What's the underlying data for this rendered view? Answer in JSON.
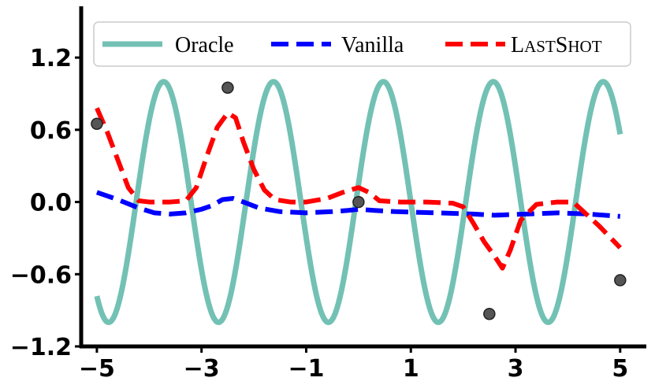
{
  "chart_data": {
    "type": "line",
    "title": "",
    "xlabel": "",
    "ylabel": "",
    "xlim": [
      -5.3,
      5.5
    ],
    "ylim": [
      -1.2,
      1.6
    ],
    "grid": false,
    "legend_position": "top",
    "x_ticks": [
      -5,
      -3,
      -1,
      1,
      3,
      5
    ],
    "x_tick_labels": [
      "−5",
      "−3",
      "−1",
      "1",
      "3",
      "5"
    ],
    "y_ticks": [
      -1.2,
      -0.6,
      0.0,
      0.6,
      1.2
    ],
    "y_tick_labels": [
      "−1.2",
      "−0.6",
      "0.0",
      "0.6",
      "1.2"
    ],
    "series": [
      {
        "name": "Oracle",
        "style": "solid",
        "color": "#72c1b4",
        "function": "sine",
        "amplitude": 1.0,
        "period": 2.1,
        "phase": 0.15,
        "x_range": [
          -5,
          5
        ]
      },
      {
        "name": "Vanilla",
        "style": "dashed",
        "color": "#0000ff",
        "x": [
          -5.0,
          -4.6,
          -4.2,
          -3.9,
          -3.6,
          -3.3,
          -3.0,
          -2.8,
          -2.6,
          -2.4,
          -2.2,
          -1.9,
          -1.5,
          -1.0,
          -0.5,
          -0.2,
          0.0,
          0.3,
          0.7,
          1.5,
          2.2,
          2.6,
          3.2,
          3.8,
          4.4,
          5.0
        ],
        "y": [
          0.08,
          0.02,
          -0.05,
          -0.09,
          -0.1,
          -0.09,
          -0.06,
          -0.03,
          0.02,
          0.03,
          0.0,
          -0.05,
          -0.08,
          -0.09,
          -0.08,
          -0.07,
          -0.06,
          -0.07,
          -0.08,
          -0.09,
          -0.1,
          -0.11,
          -0.1,
          -0.09,
          -0.1,
          -0.12
        ]
      },
      {
        "name": "LastShot",
        "style": "dashed",
        "color": "#ff0000",
        "x": [
          -5.0,
          -4.8,
          -4.6,
          -4.4,
          -4.2,
          -4.0,
          -3.6,
          -3.3,
          -3.1,
          -2.9,
          -2.7,
          -2.5,
          -2.35,
          -2.2,
          -2.0,
          -1.8,
          -1.6,
          -1.3,
          -1.0,
          -0.6,
          -0.3,
          0.0,
          0.2,
          0.4,
          0.8,
          1.3,
          1.8,
          2.0,
          2.2,
          2.4,
          2.6,
          2.75,
          2.9,
          3.1,
          3.4,
          3.8,
          4.1,
          4.3,
          4.6,
          5.0
        ],
        "y": [
          0.78,
          0.58,
          0.35,
          0.12,
          0.01,
          0.0,
          0.0,
          0.01,
          0.12,
          0.38,
          0.62,
          0.74,
          0.7,
          0.5,
          0.27,
          0.1,
          0.02,
          0.0,
          0.0,
          0.03,
          0.08,
          0.12,
          0.08,
          0.01,
          0.0,
          0.0,
          -0.01,
          -0.04,
          -0.18,
          -0.33,
          -0.45,
          -0.55,
          -0.4,
          -0.15,
          -0.02,
          0.0,
          0.0,
          -0.08,
          -0.2,
          -0.38
        ]
      }
    ],
    "context_points": {
      "x": [
        -5.0,
        -2.5,
        0.0,
        2.5,
        5.0
      ],
      "y": [
        0.65,
        0.95,
        0.0,
        -0.93,
        -0.65
      ],
      "color": "#555555"
    },
    "legend": {
      "entries": [
        {
          "label": "Oracle",
          "color": "#72c1b4",
          "style": "solid"
        },
        {
          "label": "Vanilla",
          "color": "#0000ff",
          "style": "dashed"
        },
        {
          "label_parts": [
            {
              "text": "L",
              "small_caps": false
            },
            {
              "text": "AST",
              "small_caps": true
            },
            {
              "text": "S",
              "small_caps": false
            },
            {
              "text": "HOT",
              "small_caps": true
            }
          ],
          "color": "#ff0000",
          "style": "dashed"
        }
      ]
    }
  }
}
